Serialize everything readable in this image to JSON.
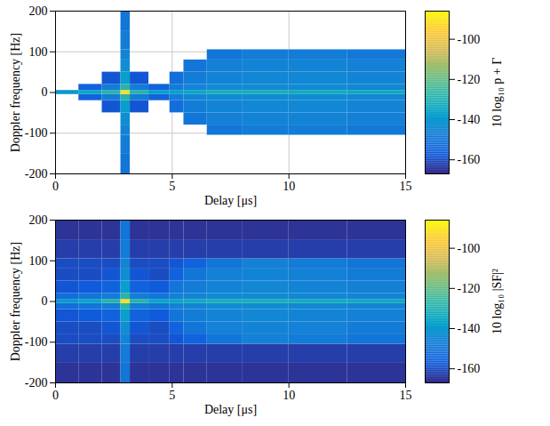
{
  "chart_data": [
    {
      "type": "heatmap",
      "xlabel": "Delay [μs]",
      "ylabel": "Doppler frequency [Hz]",
      "xlim": [
        0,
        15
      ],
      "xticks": [
        0,
        5,
        10,
        15
      ],
      "ylim": [
        -200,
        200
      ],
      "yticks": [
        -200,
        -100,
        0,
        100,
        200
      ],
      "grid": true,
      "x_edges": [
        0,
        1,
        2,
        2.8,
        3.2,
        4,
        4.9,
        5.5,
        6.5,
        8,
        10,
        12.5,
        15
      ],
      "y_edges": [
        -200,
        -150,
        -105,
        -80,
        -50,
        -20,
        -5,
        5,
        20,
        50,
        80,
        105,
        150,
        200
      ],
      "z": [
        [
          null,
          null,
          null,
          -150,
          null,
          null,
          null,
          null,
          null,
          null,
          null,
          null
        ],
        [
          null,
          null,
          null,
          -148,
          null,
          null,
          null,
          null,
          null,
          null,
          null,
          null
        ],
        [
          null,
          null,
          null,
          -146,
          null,
          null,
          null,
          null,
          -150,
          -148,
          -148,
          -149
        ],
        [
          null,
          null,
          null,
          -143,
          null,
          null,
          null,
          -150,
          -147,
          -146,
          -146,
          -147
        ],
        [
          null,
          null,
          -158,
          -138,
          -158,
          null,
          -152,
          -148,
          -146,
          -145,
          -145,
          -146
        ],
        [
          null,
          -155,
          -148,
          -128,
          -148,
          -155,
          -148,
          -146,
          -144,
          -144,
          -144,
          -145
        ],
        [
          -140,
          -135,
          -128,
          -92,
          -128,
          -138,
          -138,
          -135,
          -132,
          -132,
          -133,
          -134
        ],
        [
          null,
          -155,
          -148,
          -128,
          -148,
          -155,
          -148,
          -146,
          -144,
          -144,
          -144,
          -145
        ],
        [
          null,
          null,
          -158,
          -138,
          -158,
          null,
          -152,
          -148,
          -146,
          -145,
          -145,
          -146
        ],
        [
          null,
          null,
          null,
          -143,
          null,
          null,
          null,
          -150,
          -147,
          -146,
          -146,
          -147
        ],
        [
          null,
          null,
          null,
          -146,
          null,
          null,
          null,
          null,
          -150,
          -148,
          -148,
          -149
        ],
        [
          null,
          null,
          null,
          -148,
          null,
          null,
          null,
          null,
          null,
          null,
          null,
          null
        ],
        [
          null,
          null,
          null,
          -150,
          null,
          null,
          null,
          null,
          null,
          null,
          null,
          null
        ]
      ],
      "colorbar": {
        "label": "10 log₁₀ p + Γ",
        "lim": [
          -167,
          -86
        ],
        "ticks": [
          -100,
          -120,
          -140,
          -160
        ]
      }
    },
    {
      "type": "heatmap",
      "xlabel": "Delay [μs]",
      "ylabel": "Doppler frequency [Hz]",
      "xlim": [
        0,
        15
      ],
      "xticks": [
        0,
        5,
        10,
        15
      ],
      "ylim": [
        -200,
        200
      ],
      "yticks": [
        -200,
        -100,
        0,
        100,
        200
      ],
      "grid": true,
      "x_edges": [
        0,
        1,
        2,
        2.8,
        3.2,
        4,
        4.9,
        5.5,
        6.5,
        8,
        10,
        12.5,
        15
      ],
      "y_edges": [
        -200,
        -150,
        -105,
        -80,
        -50,
        -20,
        -5,
        5,
        20,
        50,
        80,
        105,
        150,
        200
      ],
      "z": [
        [
          -165,
          -165,
          -165,
          -150,
          -165,
          -165,
          -165,
          -165,
          -165,
          -165,
          -165,
          -165
        ],
        [
          -163,
          -163,
          -163,
          -148,
          -163,
          -163,
          -163,
          -163,
          -163,
          -163,
          -163,
          -163
        ],
        [
          -160,
          -160,
          -160,
          -146,
          -160,
          -160,
          -158,
          -155,
          -150,
          -147,
          -148,
          -150
        ],
        [
          -160,
          -160,
          -158,
          -143,
          -158,
          -160,
          -155,
          -150,
          -147,
          -146,
          -147,
          -148
        ],
        [
          -158,
          -157,
          -155,
          -138,
          -155,
          -157,
          -150,
          -148,
          -146,
          -145,
          -146,
          -147
        ],
        [
          -152,
          -150,
          -148,
          -128,
          -148,
          -150,
          -147,
          -146,
          -144,
          -144,
          -145,
          -146
        ],
        [
          -140,
          -136,
          -128,
          -92,
          -128,
          -136,
          -136,
          -134,
          -132,
          -132,
          -133,
          -134
        ],
        [
          -152,
          -150,
          -148,
          -128,
          -148,
          -150,
          -147,
          -146,
          -144,
          -144,
          -145,
          -146
        ],
        [
          -158,
          -157,
          -155,
          -138,
          -155,
          -157,
          -150,
          -148,
          -146,
          -145,
          -146,
          -147
        ],
        [
          -160,
          -160,
          -158,
          -143,
          -158,
          -160,
          -155,
          -150,
          -147,
          -146,
          -147,
          -148
        ],
        [
          -160,
          -160,
          -160,
          -146,
          -160,
          -160,
          -158,
          -155,
          -150,
          -147,
          -148,
          -150
        ],
        [
          -163,
          -163,
          -163,
          -148,
          -163,
          -163,
          -163,
          -163,
          -163,
          -163,
          -163,
          -163
        ],
        [
          -165,
          -165,
          -165,
          -150,
          -165,
          -165,
          -165,
          -165,
          -165,
          -165,
          -165,
          -165
        ]
      ],
      "colorbar": {
        "label": "10 log₁₀ |SF|²",
        "lim": [
          -167,
          -86
        ],
        "ticks": [
          -100,
          -120,
          -140,
          -160
        ]
      }
    }
  ]
}
